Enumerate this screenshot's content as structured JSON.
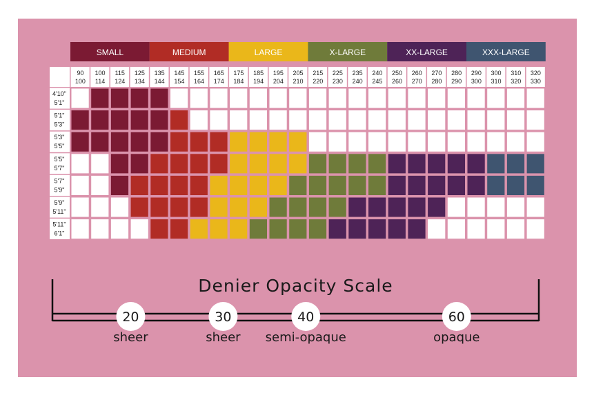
{
  "chart_data": {
    "type": "table",
    "title": "",
    "size_headers": [
      {
        "label": "SMALL",
        "color": "#7b1a33"
      },
      {
        "label": "MEDIUM",
        "color": "#b12c25"
      },
      {
        "label": "LARGE",
        "color": "#eab71a"
      },
      {
        "label": "X-LARGE",
        "color": "#6f7b3a"
      },
      {
        "label": "XX-LARGE",
        "color": "#4e2357"
      },
      {
        "label": "XXX-LARGE",
        "color": "#3f5570"
      }
    ],
    "weight_columns": [
      [
        "90",
        "100"
      ],
      [
        "100",
        "114"
      ],
      [
        "115",
        "124"
      ],
      [
        "125",
        "134"
      ],
      [
        "135",
        "144"
      ],
      [
        "145",
        "154"
      ],
      [
        "155",
        "164"
      ],
      [
        "165",
        "174"
      ],
      [
        "175",
        "184"
      ],
      [
        "185",
        "194"
      ],
      [
        "195",
        "204"
      ],
      [
        "205",
        "210"
      ],
      [
        "215",
        "220"
      ],
      [
        "225",
        "230"
      ],
      [
        "235",
        "240"
      ],
      [
        "240",
        "245"
      ],
      [
        "250",
        "260"
      ],
      [
        "260",
        "270"
      ],
      [
        "270",
        "280"
      ],
      [
        "280",
        "290"
      ],
      [
        "290",
        "300"
      ],
      [
        "300",
        "310"
      ],
      [
        "310",
        "320"
      ],
      [
        "320",
        "330"
      ]
    ],
    "height_rows": [
      [
        "4'10\"",
        "5'1\""
      ],
      [
        "5'1\"",
        "5'3\""
      ],
      [
        "5'3\"",
        "5'5\""
      ],
      [
        "5'5\"",
        "5'7\""
      ],
      [
        "5'7\"",
        "5'9\""
      ],
      [
        "5'9\"",
        "5'11\""
      ],
      [
        "5'11\"",
        "6'1\""
      ]
    ],
    "grid_legend": "0=white,1=SMALL,2=MEDIUM,3=LARGE,4=X-LARGE,5=XX-LARGE,6=XXX-LARGE",
    "grid": [
      [
        0,
        1,
        1,
        1,
        1,
        0,
        0,
        0,
        0,
        0,
        0,
        0,
        0,
        0,
        0,
        0,
        0,
        0,
        0,
        0,
        0,
        0,
        0,
        0
      ],
      [
        1,
        1,
        1,
        1,
        1,
        2,
        0,
        0,
        0,
        0,
        0,
        0,
        0,
        0,
        0,
        0,
        0,
        0,
        0,
        0,
        0,
        0,
        0,
        0
      ],
      [
        1,
        1,
        1,
        1,
        1,
        2,
        2,
        2,
        3,
        3,
        3,
        3,
        0,
        0,
        0,
        0,
        0,
        0,
        0,
        0,
        0,
        0,
        0,
        0
      ],
      [
        0,
        0,
        1,
        1,
        2,
        2,
        2,
        2,
        3,
        3,
        3,
        3,
        4,
        4,
        4,
        4,
        5,
        5,
        5,
        5,
        5,
        6,
        6,
        6
      ],
      [
        0,
        0,
        1,
        2,
        2,
        2,
        2,
        3,
        3,
        3,
        3,
        4,
        4,
        4,
        4,
        4,
        5,
        5,
        5,
        5,
        5,
        6,
        6,
        6
      ],
      [
        0,
        0,
        0,
        2,
        2,
        2,
        2,
        3,
        3,
        3,
        4,
        4,
        4,
        4,
        5,
        5,
        5,
        5,
        5,
        0,
        0,
        0,
        0,
        0
      ],
      [
        0,
        0,
        0,
        0,
        2,
        2,
        3,
        3,
        3,
        4,
        4,
        4,
        4,
        5,
        5,
        5,
        5,
        5,
        0,
        0,
        0,
        0,
        0,
        0
      ]
    ],
    "scale": {
      "title": "Denier Opacity Scale",
      "markers": [
        {
          "value": "20",
          "label": "sheer",
          "pos": 0.09
        },
        {
          "value": "30",
          "label": "sheer",
          "pos": 0.28
        },
        {
          "value": "40",
          "label": "semi-opaque",
          "pos": 0.45
        },
        {
          "value": "60",
          "label": "opaque",
          "pos": 0.76
        }
      ]
    },
    "background_color": "#db93ac",
    "empty_cell_color": "#ffffff"
  }
}
